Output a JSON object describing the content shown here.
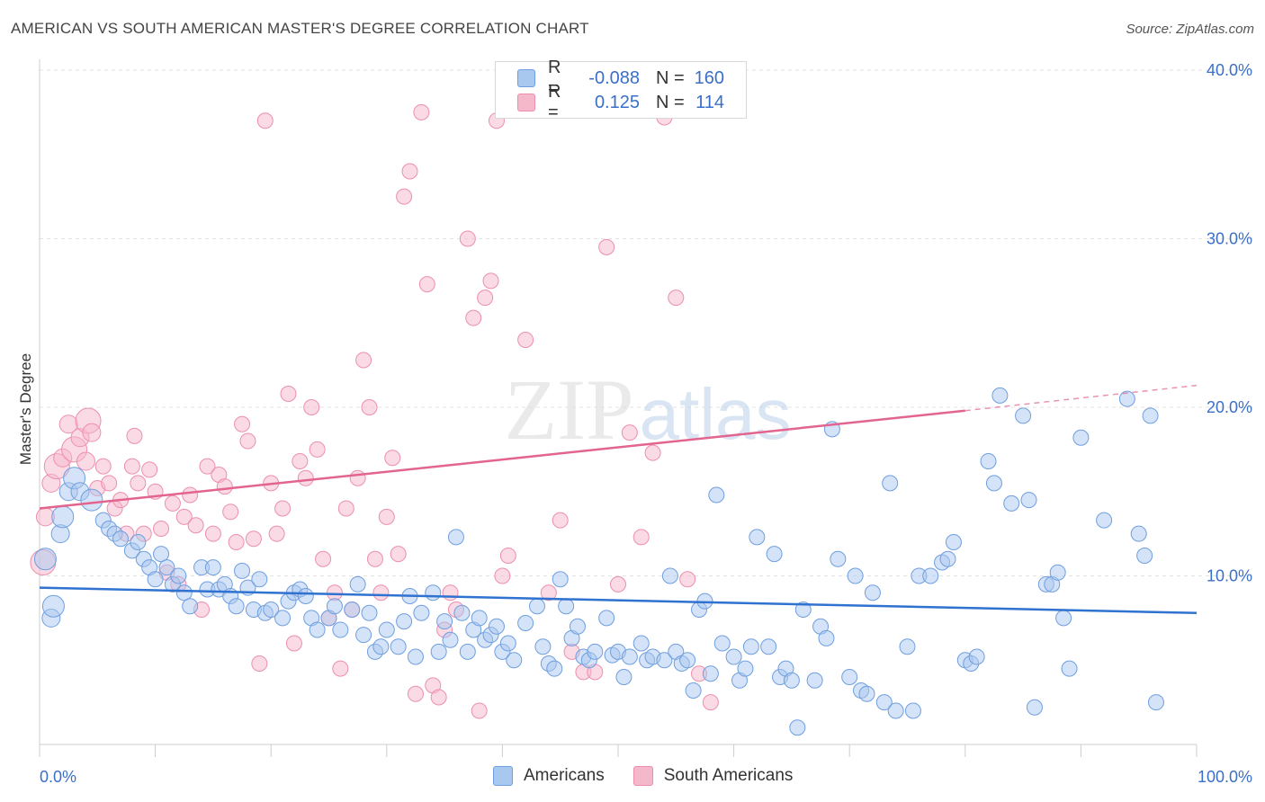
{
  "header": {
    "title": "AMERICAN VS SOUTH AMERICAN MASTER'S DEGREE CORRELATION CHART",
    "source": "Source: ZipAtlas.com"
  },
  "legend": {
    "row1": {
      "r_label": "R =",
      "r_value": "-0.088",
      "n_label": "N =",
      "n_value": "160"
    },
    "row2": {
      "r_label": "R =",
      "r_value": "0.125",
      "n_label": "N =",
      "n_value": "114"
    }
  },
  "bottom_legend": {
    "series1": "Americans",
    "series2": "South Americans"
  },
  "colors": {
    "blue_fill": "#a9c8f0",
    "blue_stroke": "#6f9fe0",
    "blue_line": "#2f72d0",
    "pink_fill": "#f5b8cb",
    "pink_stroke": "#ec8fae",
    "pink_line": "#e2648f",
    "axis_text": "#3a6fc9",
    "grid": "#e3e3e3"
  },
  "chart_data": {
    "type": "scatter",
    "title": "AMERICAN VS SOUTH AMERICAN MASTER'S DEGREE CORRELATION CHART",
    "xlabel": "",
    "ylabel": "Master's Degree",
    "xlim": [
      0,
      100
    ],
    "ylim": [
      0,
      40
    ],
    "x_ticks_labels": [
      "0.0%",
      "100.0%"
    ],
    "y_ticks": [
      10,
      20,
      30,
      40
    ],
    "y_tick_labels": [
      "10.0%",
      "20.0%",
      "30.0%",
      "40.0%"
    ],
    "grid": "horizontal dashed",
    "legend_position": "top-center",
    "watermark": "ZIPatlas",
    "series": [
      {
        "name": "Americans",
        "r": -0.088,
        "n": 160,
        "trend": {
          "x": [
            0,
            100
          ],
          "y": [
            9.3,
            7.8
          ]
        },
        "points": [
          [
            0.5,
            11
          ],
          [
            1,
            7.5
          ],
          [
            1.2,
            8.2
          ],
          [
            1.8,
            12.5
          ],
          [
            2,
            13.5
          ],
          [
            2.5,
            15
          ],
          [
            3,
            15.8
          ],
          [
            3.5,
            15
          ],
          [
            4.5,
            14.5
          ],
          [
            5.5,
            13.3
          ],
          [
            6,
            12.8
          ],
          [
            6.5,
            12.5
          ],
          [
            7,
            12.2
          ],
          [
            8,
            11.5
          ],
          [
            8.5,
            12
          ],
          [
            9,
            11
          ],
          [
            9.5,
            10.5
          ],
          [
            10,
            9.8
          ],
          [
            10.5,
            11.3
          ],
          [
            11,
            10.5
          ],
          [
            11.5,
            9.5
          ],
          [
            12,
            10
          ],
          [
            12.5,
            9
          ],
          [
            13,
            8.2
          ],
          [
            14,
            10.5
          ],
          [
            14.5,
            9.2
          ],
          [
            15,
            10.5
          ],
          [
            15.5,
            9.2
          ],
          [
            16,
            9.5
          ],
          [
            16.5,
            8.8
          ],
          [
            17,
            8.2
          ],
          [
            17.5,
            10.3
          ],
          [
            18,
            9.3
          ],
          [
            18.5,
            8
          ],
          [
            19,
            9.8
          ],
          [
            19.5,
            7.8
          ],
          [
            20,
            8
          ],
          [
            21,
            7.5
          ],
          [
            21.5,
            8.5
          ],
          [
            22,
            9
          ],
          [
            22.5,
            9.2
          ],
          [
            23,
            8.8
          ],
          [
            23.5,
            7.5
          ],
          [
            24,
            6.8
          ],
          [
            25,
            7.5
          ],
          [
            25.5,
            8.2
          ],
          [
            26,
            6.8
          ],
          [
            27,
            8
          ],
          [
            27.5,
            9.5
          ],
          [
            28,
            6.5
          ],
          [
            28.5,
            7.8
          ],
          [
            29,
            5.5
          ],
          [
            29.5,
            5.8
          ],
          [
            30,
            6.8
          ],
          [
            31,
            5.8
          ],
          [
            31.5,
            7.3
          ],
          [
            32,
            8.8
          ],
          [
            32.5,
            5.2
          ],
          [
            33,
            7.8
          ],
          [
            34,
            9
          ],
          [
            34.5,
            5.5
          ],
          [
            35,
            7.3
          ],
          [
            35.5,
            6.2
          ],
          [
            36,
            12.3
          ],
          [
            36.5,
            7.8
          ],
          [
            37,
            5.5
          ],
          [
            37.5,
            6.8
          ],
          [
            38,
            7.5
          ],
          [
            38.5,
            6.2
          ],
          [
            39,
            6.5
          ],
          [
            39.5,
            7
          ],
          [
            40,
            5.5
          ],
          [
            40.5,
            6
          ],
          [
            41,
            5
          ],
          [
            42,
            7.2
          ],
          [
            43,
            8.2
          ],
          [
            43.5,
            5.8
          ],
          [
            44,
            4.8
          ],
          [
            44.5,
            4.5
          ],
          [
            45,
            9.8
          ],
          [
            45.5,
            8.2
          ],
          [
            46,
            6.3
          ],
          [
            46.5,
            7
          ],
          [
            47,
            5.2
          ],
          [
            47.5,
            5
          ],
          [
            48,
            5.5
          ],
          [
            49,
            7.5
          ],
          [
            49.5,
            5.3
          ],
          [
            50,
            5.5
          ],
          [
            50.5,
            4
          ],
          [
            51,
            5.2
          ],
          [
            52,
            6
          ],
          [
            52.5,
            5
          ],
          [
            53,
            5.2
          ],
          [
            54,
            5
          ],
          [
            54.5,
            10
          ],
          [
            55,
            5.5
          ],
          [
            55.5,
            4.8
          ],
          [
            56,
            5
          ],
          [
            56.5,
            3.2
          ],
          [
            57,
            8
          ],
          [
            57.5,
            8.5
          ],
          [
            58,
            4.2
          ],
          [
            58.5,
            14.8
          ],
          [
            59,
            6
          ],
          [
            60,
            5.2
          ],
          [
            60.5,
            3.8
          ],
          [
            61,
            4.5
          ],
          [
            61.5,
            5.8
          ],
          [
            62,
            12.3
          ],
          [
            63,
            5.8
          ],
          [
            63.5,
            11.3
          ],
          [
            64,
            4
          ],
          [
            64.5,
            4.5
          ],
          [
            65,
            3.8
          ],
          [
            65.5,
            1
          ],
          [
            66,
            8
          ],
          [
            67,
            3.8
          ],
          [
            67.5,
            7
          ],
          [
            68,
            6.3
          ],
          [
            68.5,
            18.7
          ],
          [
            69,
            11
          ],
          [
            70,
            4
          ],
          [
            70.5,
            10
          ],
          [
            71,
            3.2
          ],
          [
            71.5,
            3
          ],
          [
            72,
            9
          ],
          [
            73,
            2.5
          ],
          [
            73.5,
            15.5
          ],
          [
            74,
            2
          ],
          [
            75,
            5.8
          ],
          [
            75.5,
            2
          ],
          [
            76,
            10
          ],
          [
            77,
            10
          ],
          [
            78,
            10.8
          ],
          [
            78.5,
            11
          ],
          [
            79,
            12
          ],
          [
            80,
            5
          ],
          [
            80.5,
            4.8
          ],
          [
            81,
            5.2
          ],
          [
            82,
            16.8
          ],
          [
            82.5,
            15.5
          ],
          [
            83,
            20.7
          ],
          [
            84,
            14.3
          ],
          [
            85,
            19.5
          ],
          [
            85.5,
            14.5
          ],
          [
            86,
            2.2
          ],
          [
            87,
            9.5
          ],
          [
            87.5,
            9.5
          ],
          [
            88,
            10.2
          ],
          [
            88.5,
            7.5
          ],
          [
            89,
            4.5
          ],
          [
            90,
            18.2
          ],
          [
            92,
            13.3
          ],
          [
            94,
            20.5
          ],
          [
            95,
            12.5
          ],
          [
            95.5,
            11.2
          ],
          [
            96,
            19.5
          ],
          [
            96.5,
            2.5
          ]
        ]
      },
      {
        "name": "South Americans",
        "r": 0.125,
        "n": 114,
        "trend": {
          "x": [
            0,
            80
          ],
          "y": [
            14.0,
            19.8
          ]
        },
        "trend_dashed": {
          "x": [
            80,
            100
          ],
          "y": [
            19.8,
            21.3
          ]
        },
        "points": [
          [
            0.3,
            10.8
          ],
          [
            0.5,
            13.5
          ],
          [
            1,
            15.5
          ],
          [
            1.5,
            16.5
          ],
          [
            2,
            17
          ],
          [
            2.5,
            19
          ],
          [
            3,
            17.5
          ],
          [
            3.5,
            18.2
          ],
          [
            4,
            16.8
          ],
          [
            4.2,
            19.2
          ],
          [
            4.5,
            18.5
          ],
          [
            5,
            15.2
          ],
          [
            5.5,
            16.5
          ],
          [
            6,
            15.5
          ],
          [
            6.5,
            14
          ],
          [
            7,
            14.5
          ],
          [
            7.5,
            12.5
          ],
          [
            8,
            16.5
          ],
          [
            8.2,
            18.3
          ],
          [
            8.5,
            15.5
          ],
          [
            9,
            12.5
          ],
          [
            9.5,
            16.3
          ],
          [
            10,
            15
          ],
          [
            10.5,
            12.8
          ],
          [
            11,
            10.2
          ],
          [
            11.5,
            14.3
          ],
          [
            12,
            9.5
          ],
          [
            12.5,
            13.5
          ],
          [
            13,
            14.8
          ],
          [
            13.5,
            13
          ],
          [
            14,
            8
          ],
          [
            14.5,
            16.5
          ],
          [
            15,
            12.5
          ],
          [
            15.5,
            16
          ],
          [
            16,
            15.3
          ],
          [
            16.5,
            13.8
          ],
          [
            17,
            12
          ],
          [
            17.5,
            19
          ],
          [
            18,
            18
          ],
          [
            18.5,
            12.2
          ],
          [
            19,
            4.8
          ],
          [
            19.5,
            37
          ],
          [
            20,
            15.5
          ],
          [
            20.5,
            12.5
          ],
          [
            21,
            14
          ],
          [
            21.5,
            20.8
          ],
          [
            22,
            6
          ],
          [
            22.5,
            16.8
          ],
          [
            23,
            15.8
          ],
          [
            23.5,
            20
          ],
          [
            24,
            17.5
          ],
          [
            24.5,
            11
          ],
          [
            25,
            7.5
          ],
          [
            25.5,
            9
          ],
          [
            26,
            4.5
          ],
          [
            26.5,
            14
          ],
          [
            27,
            8
          ],
          [
            27.5,
            15.8
          ],
          [
            28,
            22.8
          ],
          [
            28.5,
            20
          ],
          [
            29,
            11
          ],
          [
            29.5,
            9
          ],
          [
            30,
            13.5
          ],
          [
            30.5,
            17
          ],
          [
            31,
            11.3
          ],
          [
            31.5,
            32.5
          ],
          [
            32,
            34
          ],
          [
            32.5,
            3
          ],
          [
            33,
            37.5
          ],
          [
            33.5,
            27.3
          ],
          [
            34,
            3.5
          ],
          [
            34.5,
            2.8
          ],
          [
            35,
            6.8
          ],
          [
            35.5,
            9
          ],
          [
            36,
            8
          ],
          [
            37,
            30
          ],
          [
            37.5,
            25.3
          ],
          [
            38,
            2
          ],
          [
            38.5,
            26.5
          ],
          [
            39,
            27.5
          ],
          [
            39.5,
            37
          ],
          [
            40,
            10
          ],
          [
            40.5,
            11.2
          ],
          [
            42,
            24
          ],
          [
            44,
            9
          ],
          [
            45,
            13.3
          ],
          [
            46,
            5.5
          ],
          [
            47,
            4.3
          ],
          [
            48,
            4.3
          ],
          [
            49,
            29.5
          ],
          [
            50,
            9.5
          ],
          [
            51,
            18.5
          ],
          [
            52,
            12.3
          ],
          [
            53,
            17.3
          ],
          [
            54,
            37.2
          ],
          [
            55,
            26.5
          ],
          [
            56,
            9.8
          ],
          [
            57,
            4.2
          ],
          [
            58,
            2.5
          ]
        ]
      }
    ]
  }
}
